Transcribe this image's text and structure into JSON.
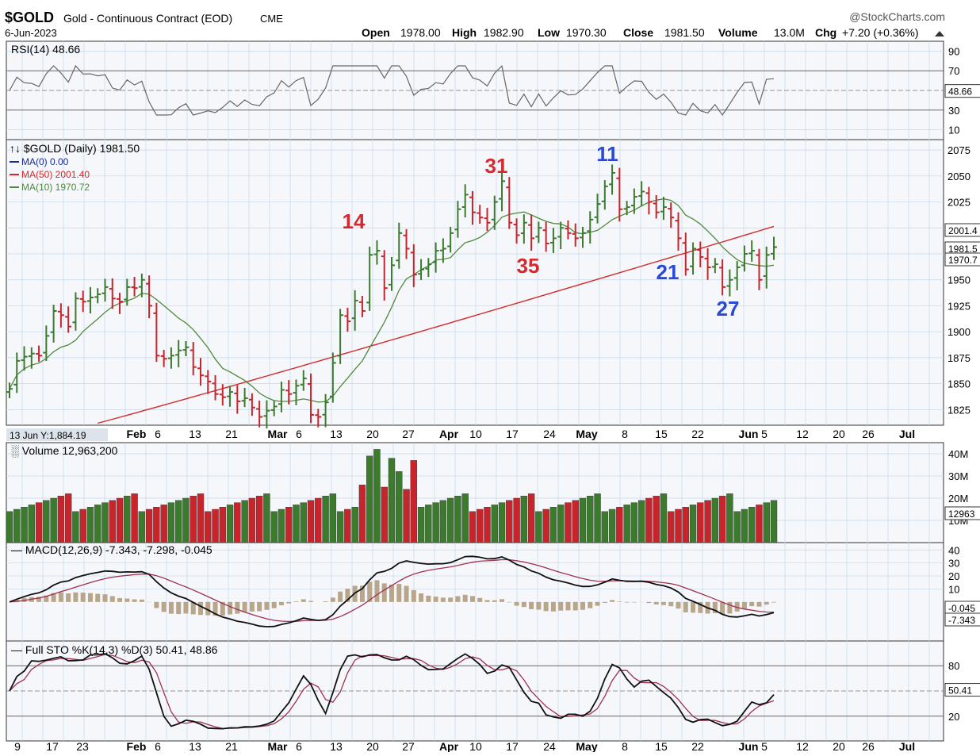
{
  "header": {
    "symbol": "$GOLD",
    "name": "Gold - Continuous Contract (EOD)",
    "exchange": "CME",
    "date": "6-Jun-2023",
    "brand": "@StockCharts.com",
    "open_label": "Open",
    "open": "1978.00",
    "high_label": "High",
    "high": "1982.90",
    "low_label": "Low",
    "low": "1970.30",
    "close_label": "Close",
    "close": "1981.50",
    "volume_label": "Volume",
    "volume": "13.0M",
    "chg_label": "Chg",
    "chg": "+7.20 (+0.36%)"
  },
  "colors": {
    "up": "#3c7a2e",
    "down": "#c8242b",
    "ma50": "#d42a2a",
    "ma10": "#4e8a3a",
    "macd": "#111111",
    "signal": "#a03050",
    "hist": "#b8a58a",
    "grid": "#c5d8ea",
    "blue_label": "#2a49d8",
    "red_label": "#d8282f",
    "panel_bg": "#f5f7fb"
  },
  "panels": {
    "rsi": {
      "title": "RSI(14) 48.66",
      "value_label": "48.66",
      "ticks": [
        "90",
        "70",
        "30",
        "10"
      ]
    },
    "price": {
      "title": "$GOLD (Daily) 1981.50",
      "legend": [
        "MA(0) 0.00",
        "MA(50) 2001.40",
        "MA(10) 1970.72"
      ],
      "ticks": [
        "2075",
        "2050",
        "2025",
        "1950",
        "1925",
        "1900",
        "1875",
        "1850",
        "1825"
      ],
      "label_ma50": "2001.4",
      "label_close": "1981.5",
      "label_ma10": "1970.7",
      "crosshair": "13 Jun Y:1,884.19"
    },
    "volume": {
      "title": "Volume 12,963,200",
      "ticks": [
        "40M",
        "30M",
        "20M",
        "10M"
      ],
      "value_label": "12963"
    },
    "macd": {
      "title": "MACD(12,26,9) -7.343, -7.298, -0.045",
      "ticks": [
        "40",
        "30",
        "20",
        "10"
      ],
      "value1": "-0.045",
      "value2": "-7.343"
    },
    "sto": {
      "title": "Full STO %K(14,3) %D(3) 50.41, 48.86",
      "ticks": [
        "80",
        "20"
      ],
      "value_label": "50.41"
    }
  },
  "x_axis_labels": [
    "Feb",
    "6",
    "13",
    "21",
    "Mar",
    "6",
    "13",
    "20",
    "27",
    "Apr",
    "10",
    "17",
    "24",
    "May",
    "8",
    "15",
    "22",
    "Jun",
    "5",
    "12",
    "20",
    "26",
    "Jul"
  ],
  "x_axis_labels_bottom": [
    "9",
    "17",
    "23",
    "Feb",
    "6",
    "13",
    "21",
    "Mar",
    "6",
    "13",
    "20",
    "27",
    "Apr",
    "10",
    "17",
    "24",
    "May",
    "8",
    "15",
    "22",
    "Jun",
    "5",
    "12",
    "20",
    "26",
    "Jul"
  ],
  "annotations": [
    "14",
    "31",
    "35",
    "11",
    "21",
    "27"
  ],
  "chart_data": {
    "type": "ohlc",
    "symbol": "$GOLD",
    "dates": [
      "2023-01-05",
      "2023-01-06",
      "2023-01-09",
      "2023-01-10",
      "2023-01-11",
      "2023-01-12",
      "2023-01-13",
      "2023-01-17",
      "2023-01-18",
      "2023-01-19",
      "2023-01-20",
      "2023-01-23",
      "2023-01-24",
      "2023-01-25",
      "2023-01-26",
      "2023-01-27",
      "2023-01-30",
      "2023-01-31",
      "2023-02-01",
      "2023-02-02",
      "2023-02-03",
      "2023-02-06",
      "2023-02-07",
      "2023-02-08",
      "2023-02-09",
      "2023-02-10",
      "2023-02-13",
      "2023-02-14",
      "2023-02-15",
      "2023-02-16",
      "2023-02-17",
      "2023-02-21",
      "2023-02-22",
      "2023-02-23",
      "2023-02-24",
      "2023-02-27",
      "2023-02-28",
      "2023-03-01",
      "2023-03-02",
      "2023-03-03",
      "2023-03-06",
      "2023-03-07",
      "2023-03-08",
      "2023-03-09",
      "2023-03-10",
      "2023-03-13",
      "2023-03-14",
      "2023-03-15",
      "2023-03-16",
      "2023-03-17",
      "2023-03-20",
      "2023-03-21",
      "2023-03-22",
      "2023-03-23",
      "2023-03-24",
      "2023-03-27",
      "2023-03-28",
      "2023-03-29",
      "2023-03-30",
      "2023-03-31",
      "2023-04-03",
      "2023-04-04",
      "2023-04-05",
      "2023-04-06",
      "2023-04-10",
      "2023-04-11",
      "2023-04-12",
      "2023-04-13",
      "2023-04-14",
      "2023-04-17",
      "2023-04-18",
      "2023-04-19",
      "2023-04-20",
      "2023-04-21",
      "2023-04-24",
      "2023-04-25",
      "2023-04-26",
      "2023-04-27",
      "2023-04-28",
      "2023-05-01",
      "2023-05-02",
      "2023-05-03",
      "2023-05-04",
      "2023-05-05",
      "2023-05-08",
      "2023-05-09",
      "2023-05-10",
      "2023-05-11",
      "2023-05-12",
      "2023-05-15",
      "2023-05-16",
      "2023-05-17",
      "2023-05-18",
      "2023-05-19",
      "2023-05-22",
      "2023-05-23",
      "2023-05-24",
      "2023-05-25",
      "2023-05-26",
      "2023-05-30",
      "2023-05-31",
      "2023-06-01",
      "2023-06-02",
      "2023-06-05",
      "2023-06-06"
    ],
    "close": [
      1845,
      1872,
      1876,
      1879,
      1877,
      1896,
      1920,
      1916,
      1905,
      1932,
      1929,
      1933,
      1936,
      1943,
      1932,
      1929,
      1943,
      1942,
      1950,
      1925,
      1877,
      1874,
      1877,
      1882,
      1885,
      1866,
      1858,
      1852,
      1840,
      1837,
      1842,
      1833,
      1836,
      1827,
      1818,
      1824,
      1828,
      1844,
      1840,
      1848,
      1855,
      1820,
      1818,
      1832,
      1870,
      1916,
      1910,
      1930,
      1920,
      1974,
      1978,
      1942,
      1964,
      1995,
      1980,
      1955,
      1960,
      1965,
      1978,
      1980,
      1995,
      2018,
      2032,
      2015,
      2010,
      2005,
      2025,
      2045,
      2005,
      1993,
      2005,
      1990,
      2000,
      1985,
      1990,
      2000,
      1995,
      1990,
      1995,
      2008,
      2023,
      2040,
      2053,
      2018,
      2020,
      2030,
      2035,
      2025,
      2015,
      2020,
      2010,
      1990,
      1960,
      1980,
      1972,
      1962,
      1965,
      1943,
      1950,
      1962,
      1975,
      1978,
      1950,
      1974,
      1981.5
    ],
    "ma10_last": 1970.72,
    "ma50_last": 2001.4,
    "volume_last": 12963200,
    "rsi_last": 48.66,
    "macd": {
      "macd": -7.343,
      "signal": -7.298,
      "histogram": -0.045
    },
    "stochastic": {
      "k": 50.41,
      "d": 48.86
    },
    "price_ylim": [
      1810,
      2085
    ],
    "last_bar": {
      "open": 1978.0,
      "high": 1982.9,
      "low": 1970.3,
      "close": 1981.5,
      "volume": "13.0M",
      "change": 7.2,
      "change_pct": 0.36
    }
  }
}
